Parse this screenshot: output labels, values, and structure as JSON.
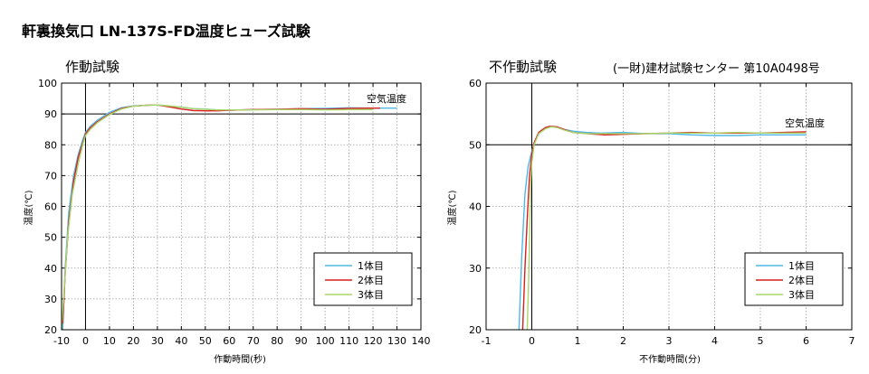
{
  "page_title": "軒裏換気口 LN-137S-FD温度ヒューズ試験",
  "note": "(一財)建材試験センター 第10A0498号",
  "colors": {
    "series1": "#4fb8e8",
    "series2": "#d81e1e",
    "series3": "#a9d66a",
    "refline": "#000000"
  },
  "chart_data": [
    {
      "type": "line",
      "title": "作動試験",
      "xlabel": "作動時間(秒)",
      "ylabel": "温度(℃)",
      "xlim": [
        -10,
        140
      ],
      "ylim": [
        20,
        100
      ],
      "xticks": [
        -10,
        0,
        10,
        20,
        30,
        40,
        50,
        60,
        70,
        80,
        90,
        100,
        110,
        120,
        130,
        140
      ],
      "yticks": [
        20,
        30,
        40,
        50,
        60,
        70,
        80,
        90,
        100
      ],
      "grid": true,
      "legend_position": "bottom-right",
      "reference_line": {
        "label": "空気温度",
        "y": 90,
        "vertical_x": 0
      },
      "series": [
        {
          "name": "1体目",
          "color_key": "series1",
          "points": [
            [
              -9.5,
              20
            ],
            [
              -8.5,
              40
            ],
            [
              -7,
              58
            ],
            [
              -5,
              70
            ],
            [
              -3,
              77
            ],
            [
              -1,
              82
            ],
            [
              0,
              84
            ],
            [
              2,
              86
            ],
            [
              5,
              88
            ],
            [
              10,
              90.5
            ],
            [
              15,
              92
            ],
            [
              20,
              92.6
            ],
            [
              25,
              92.8
            ],
            [
              30,
              92.9
            ],
            [
              35,
              92.5
            ],
            [
              40,
              92.2
            ],
            [
              45,
              91.7
            ],
            [
              50,
              91.6
            ],
            [
              55,
              91.3
            ],
            [
              60,
              91.2
            ],
            [
              70,
              91.4
            ],
            [
              80,
              91.5
            ],
            [
              90,
              91.7
            ],
            [
              100,
              91.8
            ],
            [
              110,
              92
            ],
            [
              120,
              91.9
            ],
            [
              130,
              91.9
            ]
          ]
        },
        {
          "name": "2体目",
          "color_key": "series2",
          "points": [
            [
              -9.5,
              22
            ],
            [
              -8.5,
              38
            ],
            [
              -7,
              55
            ],
            [
              -5,
              68
            ],
            [
              -3,
              76
            ],
            [
              -1,
              81
            ],
            [
              0,
              83.5
            ],
            [
              2,
              85.5
            ],
            [
              5,
              87.5
            ],
            [
              10,
              90
            ],
            [
              15,
              91.8
            ],
            [
              20,
              92.5
            ],
            [
              25,
              92.8
            ],
            [
              30,
              92.9
            ],
            [
              35,
              92.3
            ],
            [
              40,
              91.6
            ],
            [
              45,
              91.1
            ],
            [
              50,
              91
            ],
            [
              55,
              91
            ],
            [
              60,
              91.2
            ],
            [
              70,
              91.4
            ],
            [
              80,
              91.5
            ],
            [
              90,
              91.7
            ],
            [
              100,
              91.5
            ],
            [
              110,
              91.8
            ],
            [
              120,
              91.9
            ],
            [
              123,
              91.9
            ]
          ]
        },
        {
          "name": "3体目",
          "color_key": "series3",
          "points": [
            [
              -10,
              20
            ],
            [
              -9,
              32
            ],
            [
              -7.5,
              50
            ],
            [
              -5.5,
              64
            ],
            [
              -3,
              74
            ],
            [
              -1,
              80.5
            ],
            [
              0,
              83
            ],
            [
              2,
              85
            ],
            [
              5,
              87.2
            ],
            [
              10,
              89.8
            ],
            [
              15,
              91.6
            ],
            [
              20,
              92.5
            ],
            [
              25,
              92.8
            ],
            [
              30,
              92.9
            ],
            [
              35,
              92.6
            ],
            [
              40,
              92.2
            ],
            [
              45,
              91.7
            ],
            [
              50,
              91.5
            ],
            [
              55,
              91.3
            ],
            [
              60,
              91.3
            ],
            [
              70,
              91.3
            ],
            [
              80,
              91.4
            ],
            [
              90,
              91.4
            ],
            [
              100,
              91.3
            ],
            [
              110,
              91.4
            ],
            [
              120,
              91.4
            ]
          ]
        }
      ]
    },
    {
      "type": "line",
      "title": "不作動試験",
      "xlabel": "不作動時間(分)",
      "ylabel": "温度(℃)",
      "xlim": [
        -1,
        7
      ],
      "ylim": [
        20,
        60
      ],
      "xticks": [
        -1,
        0,
        1,
        2,
        3,
        4,
        5,
        6,
        7
      ],
      "yticks": [
        20,
        30,
        40,
        50,
        60
      ],
      "grid": true,
      "legend_position": "bottom-right",
      "reference_line": {
        "label": "空気温度",
        "y": 50,
        "vertical_x": 0
      },
      "series": [
        {
          "name": "1体目",
          "color_key": "series1",
          "points": [
            [
              -0.28,
              20
            ],
            [
              -0.22,
              32
            ],
            [
              -0.15,
              42
            ],
            [
              -0.08,
              46.5
            ],
            [
              0,
              49
            ],
            [
              0.08,
              50.8
            ],
            [
              0.2,
              52.3
            ],
            [
              0.3,
              52.8
            ],
            [
              0.4,
              53
            ],
            [
              0.55,
              52.9
            ],
            [
              0.7,
              52.5
            ],
            [
              0.9,
              52.2
            ],
            [
              1.2,
              52
            ],
            [
              1.5,
              51.9
            ],
            [
              2,
              52
            ],
            [
              2.5,
              51.8
            ],
            [
              3,
              51.8
            ],
            [
              3.5,
              51.6
            ],
            [
              4,
              51.5
            ],
            [
              4.5,
              51.5
            ],
            [
              5,
              51.6
            ],
            [
              5.5,
              51.6
            ],
            [
              6,
              51.6
            ]
          ]
        },
        {
          "name": "2体目",
          "color_key": "series2",
          "points": [
            [
              -0.2,
              20
            ],
            [
              -0.15,
              30
            ],
            [
              -0.1,
              38
            ],
            [
              -0.05,
              45
            ],
            [
              0,
              48.5
            ],
            [
              0.05,
              50.3
            ],
            [
              0.15,
              52
            ],
            [
              0.3,
              52.8
            ],
            [
              0.4,
              53
            ],
            [
              0.55,
              52.9
            ],
            [
              0.7,
              52.5
            ],
            [
              0.9,
              52
            ],
            [
              1.2,
              51.8
            ],
            [
              1.6,
              51.6
            ],
            [
              2,
              51.7
            ],
            [
              2.5,
              51.8
            ],
            [
              3,
              51.9
            ],
            [
              3.5,
              52
            ],
            [
              4,
              51.9
            ],
            [
              4.5,
              51.9
            ],
            [
              5,
              51.9
            ],
            [
              5.5,
              52
            ],
            [
              6,
              52.1
            ]
          ]
        },
        {
          "name": "3体目",
          "color_key": "series3",
          "points": [
            [
              -0.1,
              20
            ],
            [
              -0.07,
              28
            ],
            [
              -0.04,
              38
            ],
            [
              -0.02,
              44
            ],
            [
              0,
              47
            ],
            [
              0.05,
              50
            ],
            [
              0.15,
              51.8
            ],
            [
              0.3,
              52.6
            ],
            [
              0.42,
              52.9
            ],
            [
              0.55,
              52.8
            ],
            [
              0.7,
              52.4
            ],
            [
              0.9,
              52
            ],
            [
              1.2,
              51.8
            ],
            [
              1.6,
              51.8
            ],
            [
              2,
              51.8
            ],
            [
              2.5,
              51.8
            ],
            [
              3,
              51.9
            ],
            [
              3.5,
              51.9
            ],
            [
              4,
              51.9
            ],
            [
              4.5,
              52
            ],
            [
              5,
              51.9
            ],
            [
              5.5,
              51.9
            ],
            [
              6,
              51.9
            ]
          ]
        }
      ]
    }
  ]
}
